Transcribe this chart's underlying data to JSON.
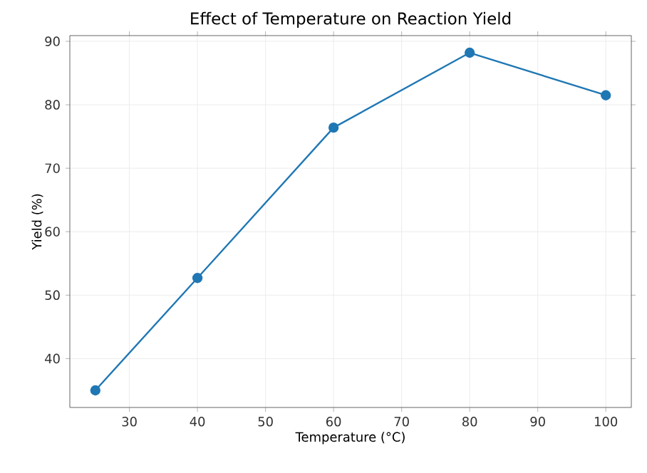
{
  "chart_data": {
    "type": "line",
    "title": "Effect of Temperature on Reaction Yield",
    "xlabel": "Temperature (°C)",
    "ylabel": "Yield (%)",
    "x": [
      25,
      40,
      60,
      80,
      100
    ],
    "series": [
      {
        "color": "#1f77b4",
        "values": [
          35.0,
          52.7,
          76.4,
          88.2,
          81.5
        ]
      }
    ],
    "xlim": [
      21.25,
      103.75
    ],
    "ylim": [
      32.3,
      90.9
    ],
    "xticks": [
      30,
      40,
      50,
      60,
      70,
      80,
      90,
      100
    ],
    "yticks": [
      40,
      50,
      60,
      70,
      80,
      90
    ],
    "grid": true,
    "marker": "circle",
    "line_style": "solid"
  }
}
